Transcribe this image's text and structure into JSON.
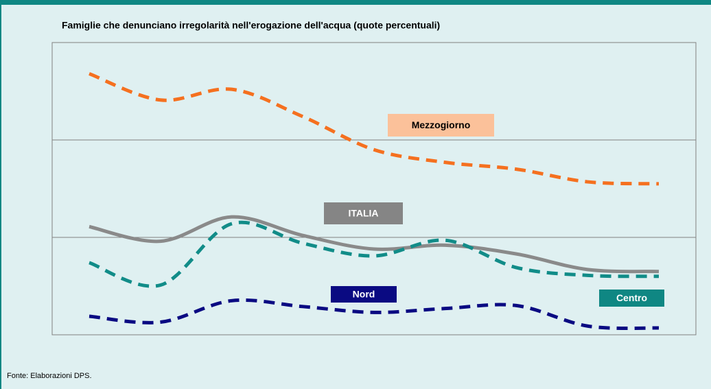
{
  "chart_data": {
    "type": "line",
    "title": "Famiglie che denunciano irregolarità nell'erogazione dell'acqua (quote percentuali)",
    "source": "Fonte: Elaborazioni DPS.",
    "categories": [
      null,
      null,
      null,
      null,
      null,
      null,
      null,
      null,
      null
    ],
    "ylim": [
      0,
      30
    ],
    "yticks": [
      0,
      10,
      20,
      30
    ],
    "grid": true,
    "series": [
      {
        "name": "Mezzogiorno",
        "color": "#f5701f",
        "dashed": true,
        "label_fill": "#fbc19a",
        "label_text_color": "#000000",
        "values": [
          26.8,
          24.1,
          25.2,
          22.4,
          19.0,
          17.7,
          17.0,
          15.7,
          15.5
        ]
      },
      {
        "name": "ITALIA",
        "color": "#8a8a8a",
        "dashed": false,
        "label_fill": "#858585",
        "label_text_color": "#ffffff",
        "values": [
          11.1,
          9.6,
          12.1,
          10.2,
          8.8,
          9.2,
          8.3,
          6.7,
          6.5
        ]
      },
      {
        "name": "Centro",
        "color": "#118c88",
        "dashed": true,
        "label_fill": "#0f8783",
        "label_text_color": "#ffffff",
        "values": [
          7.4,
          5.1,
          11.4,
          9.4,
          8.1,
          9.7,
          6.9,
          6.1,
          6.0
        ]
      },
      {
        "name": "Nord",
        "color": "#0a0a82",
        "dashed": true,
        "label_fill": "#0a0a82",
        "label_text_color": "#ffffff",
        "values": [
          1.9,
          1.3,
          3.5,
          2.9,
          2.3,
          2.7,
          3.0,
          0.9,
          0.7
        ]
      }
    ]
  }
}
